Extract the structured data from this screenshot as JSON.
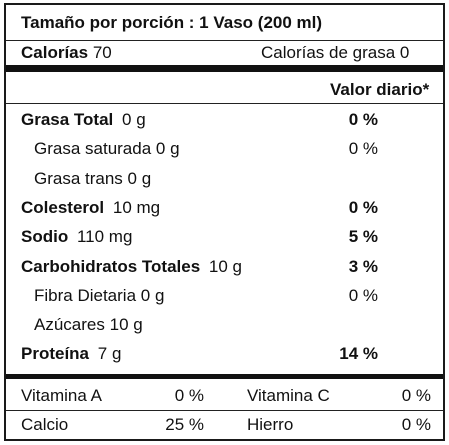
{
  "serving": "Tamaño por porción : 1 Vaso (200 ml)",
  "calories": {
    "label": "Calorías",
    "value": "70",
    "fat_label": "Calorías de grasa",
    "fat_value": "0"
  },
  "daily_value_header": "Valor diario*",
  "nutrients": [
    {
      "name": "Grasa Total",
      "amount": "0 g",
      "dv": "0 %",
      "bold": true
    },
    {
      "name": "Grasa saturada",
      "amount": "0 g",
      "dv": "0 %",
      "bold": false
    },
    {
      "name": "Grasa trans",
      "amount": "0 g",
      "dv": "",
      "bold": false
    },
    {
      "name": "Colesterol",
      "amount": "10 mg",
      "dv": "0 %",
      "bold": true
    },
    {
      "name": "Sodio",
      "amount": "110 mg",
      "dv": "5 %",
      "bold": true
    },
    {
      "name": "Carbohidratos Totales",
      "amount": "10 g",
      "dv": "3 %",
      "bold": true
    },
    {
      "name": "Fibra Dietaria",
      "amount": "0 g",
      "dv": "0 %",
      "bold": false
    },
    {
      "name": "Azúcares",
      "amount": "10 g",
      "dv": "",
      "bold": false
    },
    {
      "name": "Proteína",
      "amount": "7 g",
      "dv": "14 %",
      "bold": true
    }
  ],
  "vitamins": [
    {
      "left_name": "Vitamina A",
      "left_value": "0 %",
      "right_name": "Vitamina C",
      "right_value": "0 %"
    },
    {
      "left_name": "Calcio",
      "left_value": "25 %",
      "right_name": "Hierro",
      "right_value": "0 %"
    }
  ]
}
